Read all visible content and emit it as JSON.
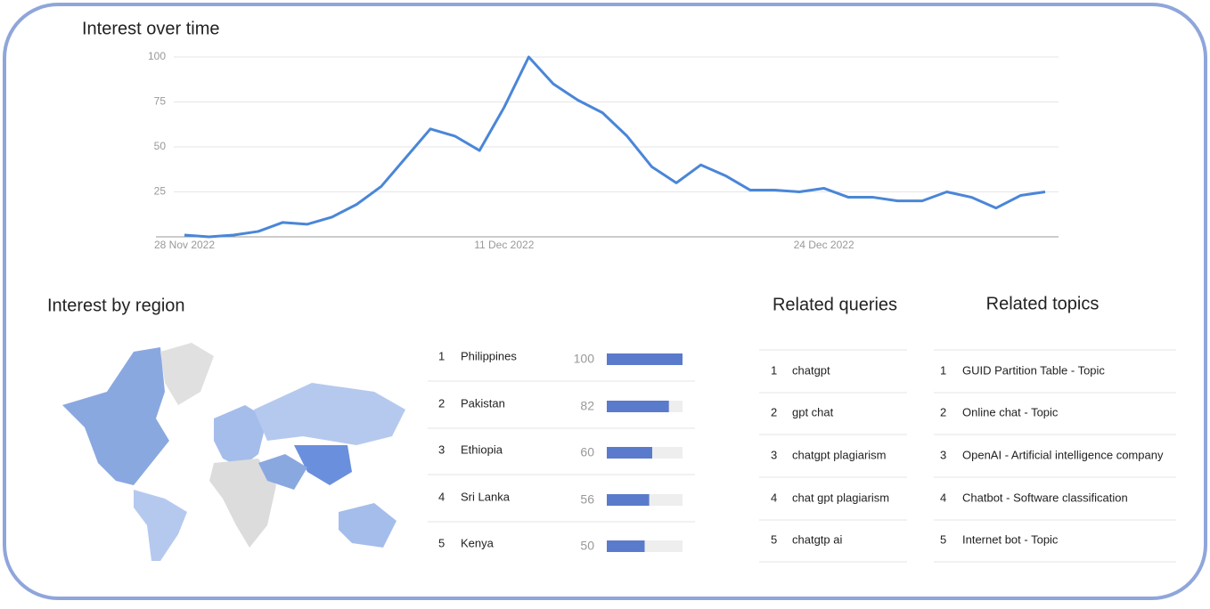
{
  "chart_data": {
    "type": "line",
    "title": "Interest over time",
    "categories": [
      "28 Nov 2022",
      null,
      null,
      null,
      null,
      null,
      null,
      null,
      null,
      null,
      null,
      null,
      null,
      "11 Dec 2022",
      null,
      null,
      null,
      null,
      null,
      null,
      null,
      null,
      null,
      null,
      null,
      null,
      "24 Dec 2022",
      null,
      null,
      null,
      null,
      null,
      null,
      null,
      null,
      null
    ],
    "series": [
      {
        "color": "#4a86d8",
        "values": [
          1,
          0,
          1,
          3,
          8,
          7,
          11,
          18,
          28,
          44,
          60,
          56,
          48,
          72,
          100,
          85,
          76,
          69,
          56,
          39,
          30,
          40,
          34,
          26,
          26,
          25,
          27,
          22,
          22,
          20,
          20,
          25,
          22,
          16,
          23,
          25
        ]
      }
    ],
    "ylim": [
      0,
      100
    ],
    "yticks": [
      25,
      50,
      75,
      100
    ],
    "grid": true
  },
  "region": {
    "title": "Interest by region",
    "color": "#5a7bcc",
    "rows": [
      {
        "rank": 1,
        "name": "Philippines",
        "value": 100
      },
      {
        "rank": 2,
        "name": "Pakistan",
        "value": 82
      },
      {
        "rank": 3,
        "name": "Ethiopia",
        "value": 60
      },
      {
        "rank": 4,
        "name": "Sri Lanka",
        "value": 56
      },
      {
        "rank": 5,
        "name": "Kenya",
        "value": 50
      }
    ]
  },
  "related_queries": {
    "title": "Related queries",
    "items": [
      {
        "rank": 1,
        "text": "chatgpt"
      },
      {
        "rank": 2,
        "text": "gpt chat"
      },
      {
        "rank": 3,
        "text": "chatgpt plagiarism"
      },
      {
        "rank": 4,
        "text": "chat gpt plagiarism"
      },
      {
        "rank": 5,
        "text": "chatgtp ai"
      }
    ]
  },
  "related_topics": {
    "title": "Related topics",
    "items": [
      {
        "rank": 1,
        "text": "GUID Partition Table - Topic"
      },
      {
        "rank": 2,
        "text": "Online chat - Topic"
      },
      {
        "rank": 3,
        "text": "OpenAI - Artificial intelligence company"
      },
      {
        "rank": 4,
        "text": "Chatbot - Software classification"
      },
      {
        "rank": 5,
        "text": "Internet bot - Topic"
      }
    ]
  }
}
